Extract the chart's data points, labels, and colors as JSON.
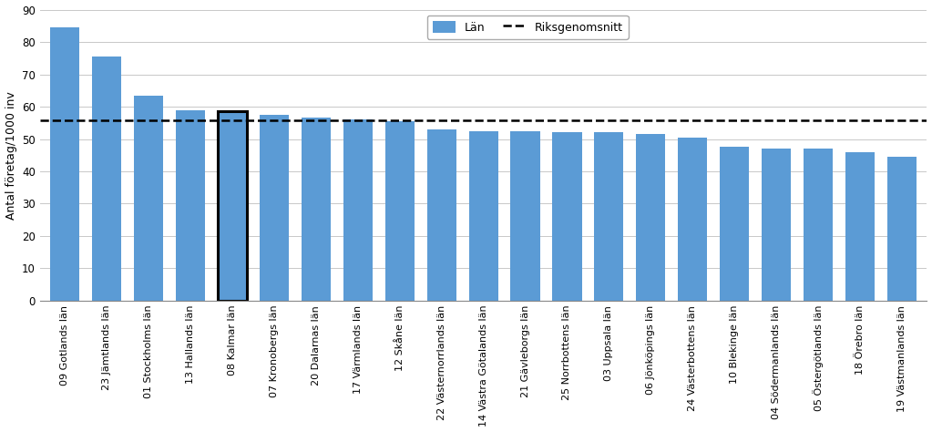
{
  "categories": [
    "09 Gotlands län",
    "23 Jämtlands län",
    "01 Stockholms län",
    "13 Hallands län",
    "08 Kalmar län",
    "07 Kronobergs län",
    "20 Dalarnas län",
    "17 Värmlands län",
    "12 Skåne län",
    "22 Västernorrlands län",
    "14 Västra Götalands län",
    "21 Gävleborgs län",
    "25 Norrbottens län",
    "03 Uppsala län",
    "06 Jönköpings län",
    "24 Västerbottens län",
    "10 Blekinge län",
    "04 Södermanlands län",
    "05 Östergötlands län",
    "18 Örebro län",
    "19 Västmanlands län"
  ],
  "values": [
    84.5,
    75.5,
    63.5,
    59.0,
    58.5,
    57.5,
    56.5,
    56.0,
    55.5,
    53.0,
    52.5,
    52.5,
    52.0,
    52.0,
    51.5,
    50.5,
    47.5,
    47.0,
    47.0,
    46.0,
    44.5
  ],
  "bar_color": "#5b9bd5",
  "highlight_index": 4,
  "riksgenomsnitt": 55.8,
  "ylabel": "Antal företag/1000 inv",
  "ylim": [
    0,
    90
  ],
  "yticks": [
    0,
    10,
    20,
    30,
    40,
    50,
    60,
    70,
    80,
    90
  ],
  "legend_bar_label": "Län",
  "legend_line_label": "Riksgenomsnitt",
  "background_color": "#ffffff",
  "grid_color": "#c8c8c8"
}
